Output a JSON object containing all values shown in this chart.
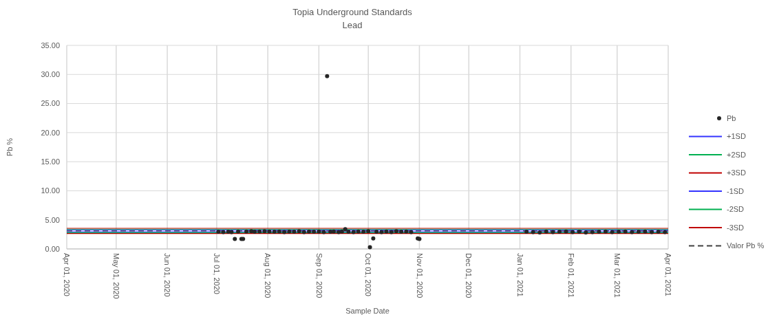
{
  "chart_data": {
    "type": "scatter",
    "title": "Topia Underground Standards",
    "subtitle": "Lead",
    "xlabel": "Sample Date",
    "ylabel": "Pb %",
    "xlim": [
      "2020-04-01",
      "2021-04-01"
    ],
    "xticks": [
      {
        "value": "2020-04-01",
        "label": "Apr 01, 2020"
      },
      {
        "value": "2020-05-01",
        "label": "May 01, 2020"
      },
      {
        "value": "2020-06-01",
        "label": "Jun 01, 2020"
      },
      {
        "value": "2020-07-01",
        "label": "Jul 01, 2020"
      },
      {
        "value": "2020-08-01",
        "label": "Aug 01, 2020"
      },
      {
        "value": "2020-09-01",
        "label": "Sep 01, 2020"
      },
      {
        "value": "2020-10-01",
        "label": "Oct 01, 2020"
      },
      {
        "value": "2020-11-01",
        "label": "Nov 01, 2020"
      },
      {
        "value": "2020-12-01",
        "label": "Dec 01, 2020"
      },
      {
        "value": "2021-01-01",
        "label": "Jan 01, 2021"
      },
      {
        "value": "2021-02-01",
        "label": "Feb 01, 2021"
      },
      {
        "value": "2021-03-01",
        "label": "Mar 01, 2021"
      },
      {
        "value": "2021-04-01",
        "label": "Apr 01, 2021"
      }
    ],
    "ylim": [
      0,
      35
    ],
    "yticks": [
      {
        "value": 0,
        "label": "0.00"
      },
      {
        "value": 5,
        "label": "5.00"
      },
      {
        "value": 10,
        "label": "10.00"
      },
      {
        "value": 15,
        "label": "15.00"
      },
      {
        "value": 20,
        "label": "20.00"
      },
      {
        "value": 25,
        "label": "25.00"
      },
      {
        "value": 30,
        "label": "30.00"
      },
      {
        "value": 35,
        "label": "35.00"
      }
    ],
    "grid": true,
    "legend": "right",
    "series": [
      {
        "name": "+1SD",
        "type": "line",
        "color": "#3333ff",
        "line_style": "solid",
        "x": [
          "2020-04-01",
          "2021-04-01"
        ],
        "values": [
          3.25,
          3.25
        ]
      },
      {
        "name": "+2SD",
        "type": "line",
        "color": "#00b050",
        "line_style": "solid",
        "x": [
          "2020-04-01",
          "2021-04-01"
        ],
        "values": [
          3.4,
          3.4
        ]
      },
      {
        "name": "+3SD",
        "type": "line",
        "color": "#c00000",
        "line_style": "solid",
        "x": [
          "2020-04-01",
          "2021-04-01"
        ],
        "values": [
          3.55,
          3.55
        ]
      },
      {
        "name": "-1SD",
        "type": "line",
        "color": "#3333ff",
        "line_style": "solid",
        "x": [
          "2020-04-01",
          "2021-04-01"
        ],
        "values": [
          2.95,
          2.95
        ]
      },
      {
        "name": "-2SD",
        "type": "line",
        "color": "#00b050",
        "line_style": "solid",
        "x": [
          "2020-04-01",
          "2021-04-01"
        ],
        "values": [
          2.8,
          2.8
        ]
      },
      {
        "name": "-3SD",
        "type": "line",
        "color": "#c00000",
        "line_style": "solid",
        "x": [
          "2020-04-01",
          "2021-04-01"
        ],
        "values": [
          2.65,
          2.65
        ]
      },
      {
        "name": "Valor Pb %",
        "type": "line",
        "color": "#404040",
        "line_style": "dashed",
        "x": [
          "2020-04-01",
          "2021-04-01"
        ],
        "values": [
          3.1,
          3.1
        ]
      },
      {
        "name": "Pb",
        "color": "#262626",
        "marker": "circle",
        "x": [
          "2020-07-02",
          "2020-07-05",
          "2020-07-08",
          "2020-07-10",
          "2020-07-12",
          "2020-07-14",
          "2020-07-16",
          "2020-07-17",
          "2020-07-19",
          "2020-07-22",
          "2020-07-24",
          "2020-07-27",
          "2020-07-30",
          "2020-08-02",
          "2020-08-05",
          "2020-08-08",
          "2020-08-11",
          "2020-08-14",
          "2020-08-17",
          "2020-08-20",
          "2020-08-23",
          "2020-08-26",
          "2020-08-29",
          "2020-09-01",
          "2020-09-04",
          "2020-09-06",
          "2020-09-08",
          "2020-09-10",
          "2020-09-13",
          "2020-09-15",
          "2020-09-17",
          "2020-09-19",
          "2020-09-22",
          "2020-09-25",
          "2020-09-28",
          "2020-10-01",
          "2020-10-02",
          "2020-10-04",
          "2020-10-06",
          "2020-10-09",
          "2020-10-12",
          "2020-10-15",
          "2020-10-18",
          "2020-10-21",
          "2020-10-24",
          "2020-10-27",
          "2020-10-31",
          "2020-11-01",
          "2021-01-05",
          "2021-01-09",
          "2021-01-13",
          "2021-01-17",
          "2021-01-21",
          "2021-01-25",
          "2021-01-29",
          "2021-02-02",
          "2021-02-06",
          "2021-02-10",
          "2021-02-14",
          "2021-02-18",
          "2021-02-22",
          "2021-02-26",
          "2021-03-02",
          "2021-03-06",
          "2021-03-10",
          "2021-03-14",
          "2021-03-18",
          "2021-03-22",
          "2021-03-26",
          "2021-03-30"
        ],
        "values": [
          2.95,
          2.9,
          2.95,
          2.9,
          1.7,
          3.0,
          1.7,
          1.7,
          3.0,
          3.05,
          2.95,
          3.0,
          3.05,
          3.0,
          2.95,
          3.0,
          2.9,
          3.0,
          2.95,
          3.05,
          2.9,
          3.0,
          2.95,
          3.0,
          2.9,
          29.7,
          2.95,
          3.0,
          2.9,
          3.0,
          3.4,
          2.95,
          2.9,
          3.0,
          2.95,
          3.05,
          0.3,
          1.8,
          2.95,
          2.9,
          3.0,
          2.9,
          3.05,
          2.95,
          3.0,
          2.9,
          1.8,
          1.7,
          2.95,
          2.9,
          2.85,
          3.0,
          2.9,
          2.95,
          3.0,
          2.9,
          2.95,
          2.85,
          2.9,
          2.95,
          3.0,
          2.9,
          2.95,
          3.0,
          2.9,
          2.95,
          3.0,
          2.9,
          2.95,
          2.9
        ]
      }
    ]
  }
}
